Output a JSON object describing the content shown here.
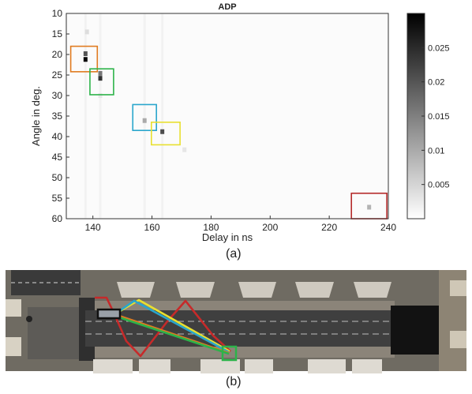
{
  "chart_data": {
    "type": "heatmap",
    "title": "ADP",
    "xlabel": "Delay in ns",
    "ylabel": "Angle in deg.",
    "xlim": [
      131,
      240
    ],
    "ylim": [
      10,
      60
    ],
    "y_inverted": true,
    "xticks": [
      140,
      160,
      180,
      200,
      220,
      240
    ],
    "yticks": [
      10,
      15,
      20,
      25,
      30,
      35,
      40,
      45,
      50,
      55,
      60
    ],
    "colorbar": {
      "colormap": "gray-reversed",
      "range": [
        0,
        0.03
      ],
      "ticks": [
        0.005,
        0.01,
        0.015,
        0.02,
        0.025
      ],
      "tick_labels": [
        "0.005",
        "0.01",
        "0.015",
        "0.02",
        "0.025"
      ]
    },
    "peaks": [
      {
        "delay": 137.5,
        "angle": 21.2,
        "power": 0.029
      },
      {
        "delay": 137.5,
        "angle": 19.8,
        "power": 0.02
      },
      {
        "delay": 142.5,
        "angle": 25.8,
        "power": 0.024
      },
      {
        "delay": 142.5,
        "angle": 24.6,
        "power": 0.016
      },
      {
        "delay": 157.5,
        "angle": 36.1,
        "power": 0.01
      },
      {
        "delay": 163.5,
        "angle": 38.8,
        "power": 0.021
      },
      {
        "delay": 233.5,
        "angle": 57.2,
        "power": 0.009
      },
      {
        "delay": 138.0,
        "angle": 14.5,
        "power": 0.004
      },
      {
        "delay": 142.5,
        "angle": 30.0,
        "power": 0.003
      },
      {
        "delay": 171.0,
        "angle": 43.2,
        "power": 0.003
      }
    ],
    "boxes": [
      {
        "color": "#e07b20",
        "x0": 132.5,
        "x1": 141.5,
        "y0": 18.0,
        "y1": 24.2
      },
      {
        "color": "#2db34a",
        "x0": 139.0,
        "x1": 147.0,
        "y0": 23.5,
        "y1": 29.8
      },
      {
        "color": "#2aa6cc",
        "x0": 153.5,
        "x1": 161.5,
        "y0": 32.2,
        "y1": 38.5
      },
      {
        "color": "#e8e030",
        "x0": 159.8,
        "x1": 169.5,
        "y0": 36.5,
        "y1": 42.0
      },
      {
        "color": "#b52b2b",
        "x0": 227.5,
        "x1": 239.5,
        "y0": 53.8,
        "y1": 60.0
      }
    ]
  },
  "panels": {
    "a_label": "(a)",
    "b_label": "(b)"
  },
  "scene": {
    "ray_colors": [
      "#e8e030",
      "#2aa6cc",
      "#e07b20",
      "#2db34a",
      "#c62a2a"
    ],
    "tx_box_color": "#111111",
    "rx_box_color": "#2db34a"
  }
}
